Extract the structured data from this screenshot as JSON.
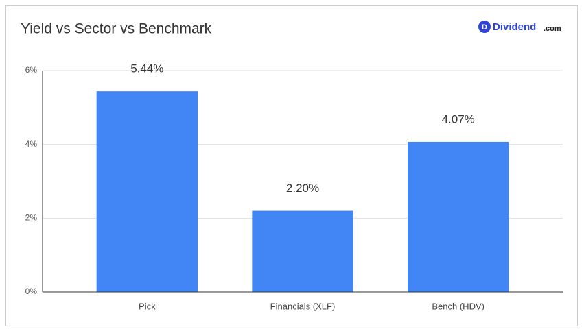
{
  "chart_data": {
    "type": "bar",
    "title": "Yield vs Sector vs Benchmark",
    "categories": [
      "Pick",
      "Financials (XLF)",
      "Bench (HDV)"
    ],
    "values": [
      5.44,
      2.2,
      4.07
    ],
    "value_labels": [
      "5.44%",
      "2.20%",
      "4.07%"
    ],
    "color": "#4285f4",
    "ylim": [
      0,
      6
    ],
    "yticks": [
      {
        "value": 0,
        "label": "0%"
      },
      {
        "value": 2,
        "label": "2%"
      },
      {
        "value": 4,
        "label": "4%"
      },
      {
        "value": 6,
        "label": "6%"
      }
    ],
    "grid": true
  },
  "logo": {
    "icon": "D",
    "name": "Dividend",
    "suffix": ".com"
  }
}
